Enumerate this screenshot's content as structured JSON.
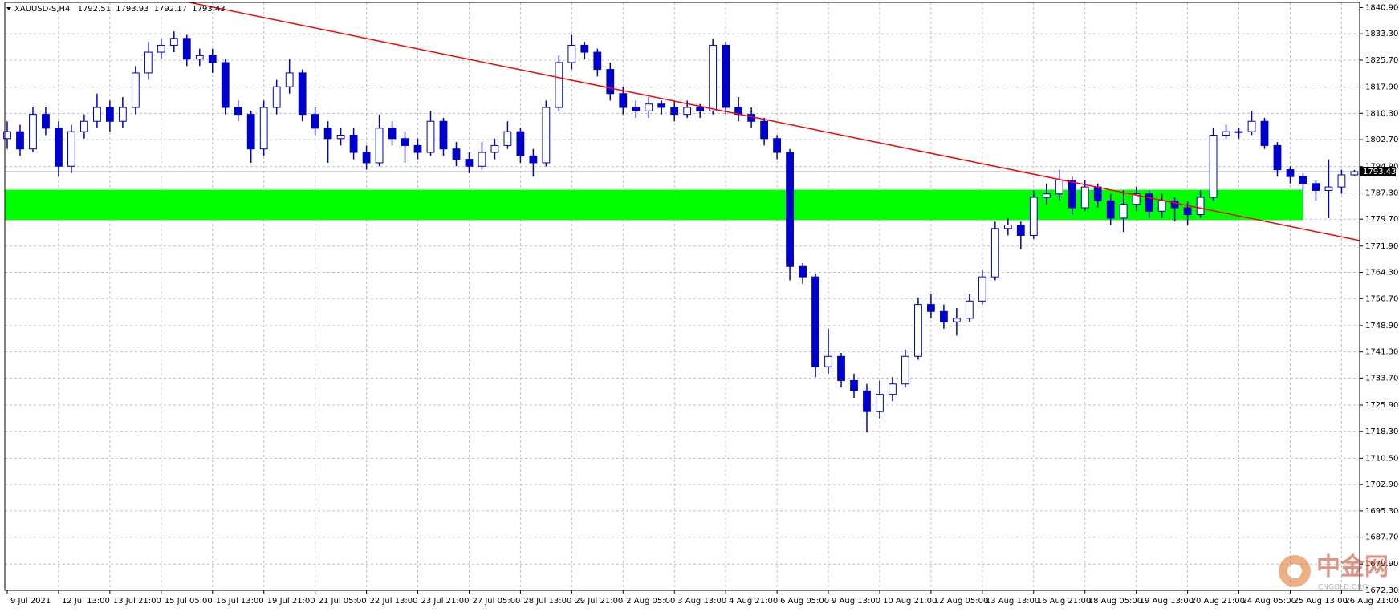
{
  "chart_data": {
    "type": "candlestick",
    "symbol": "XAUUSD-S,H4",
    "color": "#0000cc",
    "categories": [
      "9 Jul 2021",
      null,
      null,
      null,
      "12 Jul 13:00",
      null,
      null,
      null,
      "13 Jul 21:00",
      null,
      null,
      null,
      "15 Jul 05:00",
      null,
      null,
      null,
      "16 Jul 13:00",
      null,
      null,
      null,
      "19 Jul 21:00",
      null,
      null,
      null,
      "21 Jul 05:00",
      null,
      null,
      null,
      "22 Jul 13:00",
      null,
      null,
      null,
      "23 Jul 21:00",
      null,
      null,
      null,
      "27 Jul 05:00",
      null,
      null,
      null,
      "28 Jul 13:00",
      null,
      null,
      null,
      "29 Jul 21:00",
      null,
      null,
      null,
      "2 Aug 05:00",
      null,
      null,
      null,
      "3 Aug 13:00",
      null,
      null,
      null,
      "4 Aug 21:00",
      null,
      null,
      null,
      "6 Aug 05:00",
      null,
      null,
      null,
      "9 Aug 13:00",
      null,
      null,
      null,
      "10 Aug 21:00",
      null,
      null,
      null,
      "12 Aug 05:00",
      null,
      null,
      null,
      "13 Aug 13:00",
      null,
      null,
      null,
      "16 Aug 21:00",
      null,
      null,
      null,
      "18 Aug 05:00",
      null,
      null,
      null,
      "19 Aug 13:00",
      null,
      null,
      null,
      "20 Aug 21:00",
      null,
      null,
      null,
      "24 Aug 05:00",
      null,
      null,
      null,
      "25 Aug 13:00",
      null,
      null,
      null,
      "26 Aug 21:00",
      null
    ],
    "open": [
      1803,
      1805,
      1800,
      1810,
      1806,
      1795,
      1805,
      1808,
      1812,
      1808,
      1812,
      1822,
      1828,
      1830,
      1832,
      1826,
      1827,
      1825,
      1812,
      1810,
      1800,
      1812,
      1818,
      1822,
      1810,
      1806,
      1803,
      1804,
      1799,
      1796,
      1806,
      1803,
      1801,
      1799,
      1808,
      1800,
      1797,
      1795,
      1799,
      1801,
      1805,
      1798,
      1796,
      1812,
      1825,
      1830,
      1828,
      1823,
      1816,
      1812,
      1811,
      1813,
      1812,
      1810,
      1812,
      1811,
      1830,
      1812,
      1810,
      1808,
      1803,
      1799,
      1766,
      1763,
      1737,
      1740,
      1733,
      1730,
      1724,
      1729,
      1732,
      1740,
      1755,
      1753,
      1750,
      1751,
      1756,
      1763,
      1777,
      1778,
      1775,
      1786,
      1787,
      1791,
      1783,
      1789,
      1785,
      1780,
      1784,
      1787,
      1782,
      1785,
      1783,
      1781,
      1786,
      1804,
      1805,
      1805,
      1808,
      1801,
      1794,
      1792,
      1790,
      1788,
      1789,
      1792.51
    ],
    "high": [
      1808,
      1807,
      1812,
      1812,
      1808,
      1807,
      1810,
      1816,
      1814,
      1815,
      1824,
      1831,
      1832,
      1834,
      1833,
      1829,
      1829,
      1826,
      1814,
      1811,
      1814,
      1820,
      1826,
      1823,
      1812,
      1808,
      1806,
      1806,
      1801,
      1810,
      1808,
      1805,
      1803,
      1811,
      1809,
      1802,
      1799,
      1802,
      1803,
      1808,
      1806,
      1800,
      1814,
      1827,
      1833,
      1831,
      1829,
      1825,
      1818,
      1814,
      1815,
      1814,
      1814,
      1814,
      1813,
      1832,
      1831,
      1815,
      1812,
      1809,
      1804,
      1800,
      1767,
      1764,
      1748,
      1741,
      1735,
      1732,
      1733,
      1734,
      1742,
      1757,
      1758,
      1755,
      1754,
      1758,
      1765,
      1779,
      1780,
      1779,
      1788,
      1790,
      1794,
      1792,
      1791,
      1790,
      1787,
      1788,
      1789,
      1788,
      1787,
      1786,
      1785,
      1788,
      1806,
      1807,
      1806,
      1811,
      1809,
      1802,
      1795,
      1793,
      1791,
      1797,
      1794,
      1793.93
    ],
    "low": [
      1800,
      1798,
      1799,
      1804,
      1792,
      1793,
      1803,
      1806,
      1805,
      1806,
      1810,
      1820,
      1826,
      1828,
      1824,
      1824,
      1822,
      1810,
      1808,
      1796,
      1798,
      1810,
      1816,
      1808,
      1804,
      1796,
      1801,
      1797,
      1794,
      1795,
      1801,
      1796,
      1797,
      1798,
      1798,
      1795,
      1793,
      1794,
      1797,
      1800,
      1796,
      1792,
      1795,
      1811,
      1823,
      1826,
      1821,
      1814,
      1810,
      1809,
      1809,
      1810,
      1808,
      1809,
      1809,
      1810,
      1810,
      1808,
      1806,
      1801,
      1797,
      1762,
      1761,
      1734,
      1735,
      1731,
      1728,
      1718,
      1722,
      1727,
      1731,
      1739,
      1751,
      1748,
      1746,
      1750,
      1755,
      1762,
      1775,
      1771,
      1774,
      1784,
      1785,
      1781,
      1782,
      1783,
      1778,
      1776,
      1782,
      1780,
      1780,
      1779,
      1778,
      1780,
      1785,
      1803,
      1803,
      1804,
      1800,
      1792,
      1790,
      1788,
      1785,
      1780,
      1787,
      1792.17
    ],
    "close": [
      1805,
      1800,
      1810,
      1806,
      1795,
      1805,
      1808,
      1812,
      1808,
      1812,
      1822,
      1828,
      1830,
      1832,
      1826,
      1827,
      1825,
      1812,
      1810,
      1800,
      1812,
      1818,
      1822,
      1810,
      1806,
      1803,
      1804,
      1799,
      1796,
      1806,
      1803,
      1801,
      1799,
      1808,
      1800,
      1797,
      1795,
      1799,
      1801,
      1805,
      1798,
      1796,
      1812,
      1825,
      1830,
      1828,
      1823,
      1816,
      1812,
      1811,
      1813,
      1812,
      1810,
      1812,
      1811,
      1830,
      1812,
      1810,
      1808,
      1803,
      1799,
      1766,
      1763,
      1737,
      1740,
      1733,
      1730,
      1724,
      1729,
      1732,
      1740,
      1755,
      1753,
      1750,
      1751,
      1756,
      1763,
      1777,
      1778,
      1775,
      1786,
      1787,
      1791,
      1783,
      1789,
      1785,
      1780,
      1784,
      1787,
      1782,
      1785,
      1783,
      1781,
      1786,
      1804,
      1805,
      1805,
      1808,
      1801,
      1794,
      1792,
      1790,
      1788,
      1789,
      1792.51,
      1793.43
    ],
    "ylim": [
      1672.3,
      1842.4
    ],
    "yticks": [
      {
        "value": 1840.9,
        "label": "1840.90"
      },
      {
        "value": 1833.3,
        "label": "1833.30"
      },
      {
        "value": 1825.7,
        "label": "1825.70"
      },
      {
        "value": 1817.9,
        "label": "1817.90"
      },
      {
        "value": 1810.3,
        "label": "1810.30"
      },
      {
        "value": 1802.7,
        "label": "1802.70"
      },
      {
        "value": 1794.9,
        "label": "1794.90"
      },
      {
        "value": 1787.3,
        "label": "1787.30"
      },
      {
        "value": 1779.7,
        "label": "1779.70"
      },
      {
        "value": 1771.9,
        "label": "1771.90"
      },
      {
        "value": 1764.3,
        "label": "1764.30"
      },
      {
        "value": 1756.7,
        "label": "1756.70"
      },
      {
        "value": 1748.9,
        "label": "1748.90"
      },
      {
        "value": 1741.3,
        "label": "1741.30"
      },
      {
        "value": 1733.7,
        "label": "1733.70"
      },
      {
        "value": 1725.9,
        "label": "1725.90"
      },
      {
        "value": 1718.3,
        "label": "1718.30"
      },
      {
        "value": 1710.5,
        "label": "1710.50"
      },
      {
        "value": 1702.9,
        "label": "1702.90"
      },
      {
        "value": 1695.3,
        "label": "1695.30"
      },
      {
        "value": 1687.7,
        "label": "1687.70"
      },
      {
        "value": 1679.9,
        "label": "1679.90"
      },
      {
        "value": 1672.3,
        "label": "1672.30"
      }
    ],
    "grid": true,
    "trendline": {
      "color": "#ff0000",
      "x": [
        14.2,
        105.6
      ],
      "values": [
        1842.4,
        1773.5
      ]
    },
    "zone": {
      "color": "#00ff00",
      "x": [
        0,
        101
      ],
      "values": [
        1779.4,
        1788.2
      ]
    },
    "watermark": {
      "name": "中金网",
      "site": "CNGOLD.ORG"
    }
  }
}
